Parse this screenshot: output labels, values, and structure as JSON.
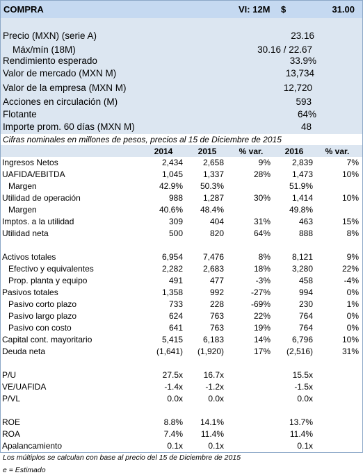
{
  "header": {
    "title": "COMPRA",
    "target_label": "VI: 12M",
    "currency_symbol": "$",
    "target_value": "31.00"
  },
  "summary": [
    {
      "label": "Precio (MXN) (serie A)",
      "value": "23.16"
    },
    {
      "label": "Máx/mín (18M)",
      "value": "30.16 / 22.67"
    },
    {
      "label": "Rendimiento esperado",
      "value": "33.9%"
    },
    {
      "label": "Valor de mercado (MXN M)",
      "value": "13,734"
    },
    {
      "label": "Valor de la empresa (MXN M)",
      "value": "12,720"
    },
    {
      "label": "Acciones en circulación (M)",
      "value": "593"
    },
    {
      "label": "Flotante",
      "value": "64%"
    },
    {
      "label": "Importe prom. 60 días (MXN M)",
      "value": "48"
    }
  ],
  "note_top": "Cifras nominales en millones de pesos, precios al 15 de Diciembre de 2015",
  "columns": [
    "2014",
    "2015",
    "% var.",
    "2016",
    "% var."
  ],
  "rows": [
    {
      "label": "Ingresos Netos",
      "v": [
        "2,434",
        "2,658",
        "9%",
        "2,839",
        "7%"
      ]
    },
    {
      "label": "UAFIDA/EBITDA",
      "v": [
        "1,045",
        "1,337",
        "28%",
        "1,473",
        "10%"
      ]
    },
    {
      "label": "Margen",
      "v": [
        "42.9%",
        "50.3%",
        "",
        "51.9%",
        ""
      ]
    },
    {
      "label": "Utilidad de operación",
      "v": [
        "988",
        "1,287",
        "30%",
        "1,414",
        "10%"
      ]
    },
    {
      "label": "Margen",
      "v": [
        "40.6%",
        "48.4%",
        "",
        "49.8%",
        ""
      ]
    },
    {
      "label": "Imptos. a la utilidad",
      "v": [
        "309",
        "404",
        "31%",
        "463",
        "15%"
      ]
    },
    {
      "label": "Utilidad neta",
      "v": [
        "500",
        "820",
        "64%",
        "888",
        "8%"
      ]
    },
    {
      "label": "Activos totales",
      "v": [
        "6,954",
        "7,476",
        "8%",
        "8,121",
        "9%"
      ]
    },
    {
      "label": "Efectivo y equivalentes",
      "v": [
        "2,282",
        "2,683",
        "18%",
        "3,280",
        "22%"
      ]
    },
    {
      "label": "Prop. planta y equipo",
      "v": [
        "491",
        "477",
        "-3%",
        "458",
        "-4%"
      ]
    },
    {
      "label": "Pasivos totales",
      "v": [
        "1,358",
        "992",
        "-27%",
        "994",
        "0%"
      ]
    },
    {
      "label": "Pasivo corto plazo",
      "v": [
        "733",
        "228",
        "-69%",
        "230",
        "1%"
      ]
    },
    {
      "label": "Pasivo largo plazo",
      "v": [
        "624",
        "763",
        "22%",
        "764",
        "0%"
      ]
    },
    {
      "label": "Pasivo con costo",
      "v": [
        "641",
        "763",
        "19%",
        "764",
        "0%"
      ]
    },
    {
      "label": "Capital cont. mayoritario",
      "v": [
        "5,415",
        "6,183",
        "14%",
        "6,796",
        "10%"
      ]
    },
    {
      "label": "Deuda neta",
      "v": [
        "(1,641)",
        "(1,920)",
        "17%",
        "(2,516)",
        "31%"
      ]
    },
    {
      "label": "P/U",
      "v": [
        "27.5x",
        "16.7x",
        "",
        "15.5x",
        ""
      ]
    },
    {
      "label": "VE/UAFIDA",
      "v": [
        "-1.4x",
        "-1.2x",
        "",
        "-1.5x",
        ""
      ]
    },
    {
      "label": "P/VL",
      "v": [
        "0.0x",
        "0.0x",
        "",
        "0.0x",
        ""
      ]
    },
    {
      "label": "ROE",
      "v": [
        "8.8%",
        "14.1%",
        "",
        "13.7%",
        ""
      ]
    },
    {
      "label": "ROA",
      "v": [
        "7.4%",
        "11.4%",
        "",
        "11.4%",
        ""
      ]
    },
    {
      "label": "Apalancamiento",
      "v": [
        "0.1x",
        "0.1x",
        "",
        "0.1x",
        ""
      ]
    }
  ],
  "footnote_1": "Los múltiplos se calculan con base al precio del 15 de Diciembre de 2015",
  "footnote_2": "e = Estimado"
}
